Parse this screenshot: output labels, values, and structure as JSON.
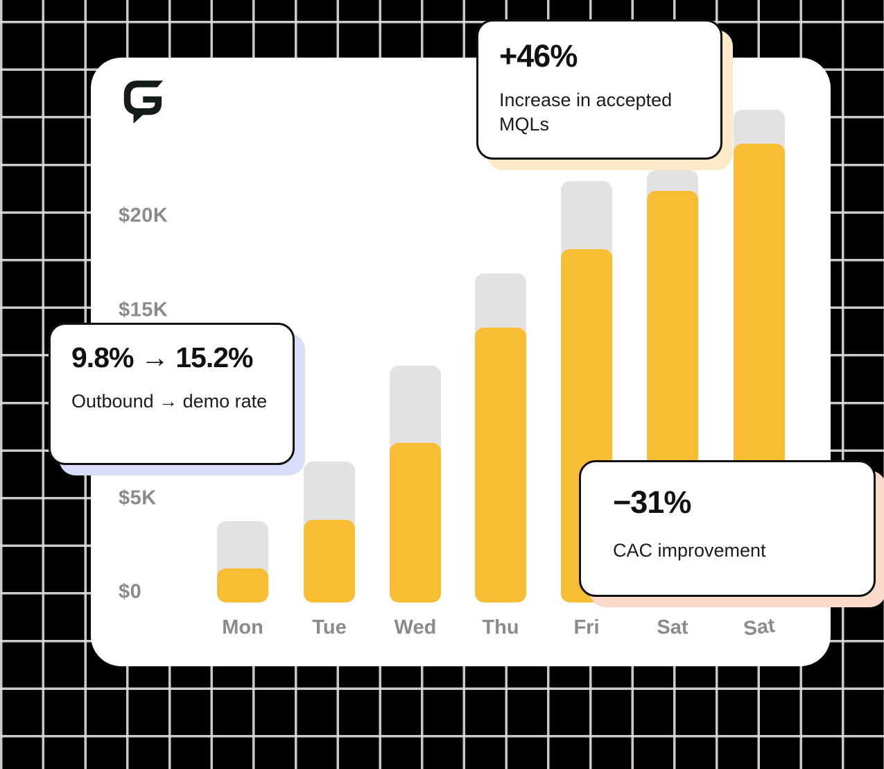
{
  "canvas": {
    "background_color": "#000000",
    "grid_line_color": "#dbdbdb"
  },
  "brand": {
    "logo_icon": "g-speech-bubble-logo",
    "logo_color": "#131c15"
  },
  "chart_data": {
    "type": "bar",
    "stacked": true,
    "title": "",
    "xlabel": "",
    "ylabel": "",
    "categories": [
      "Mon",
      "Tue",
      "Wed",
      "Thu",
      "Fri",
      "Sat",
      "Sat"
    ],
    "series": [
      {
        "name": "value",
        "color": "#F8BE33",
        "values": [
          1800,
          4400,
          8500,
          14600,
          18800,
          21900,
          24400
        ]
      },
      {
        "name": "total-track",
        "color": "#E2E2E2",
        "values": [
          4300,
          7500,
          12600,
          17500,
          22400,
          23000,
          26200
        ]
      }
    ],
    "y_ticks": [
      {
        "label": "$20K",
        "value": 20000
      },
      {
        "label": "$15K",
        "value": 15000
      },
      {
        "label": "$5K",
        "value": 5000
      },
      {
        "label": "$0",
        "value": 0
      }
    ],
    "ylim": [
      0,
      27000
    ],
    "grid": "off",
    "legend": "none",
    "axis_label_color": "#8b8b8b",
    "note": "gray track segments are drawn to the total value behind the yellow value segments"
  },
  "callouts": [
    {
      "id": "demo-rate",
      "title": "9.8% → 15.2%",
      "subtitle": "Outbound → demo rate",
      "shadow_color": "#D9DDF7"
    },
    {
      "id": "mqls",
      "title": "+46%",
      "subtitle": "Increase in accepted MQLs",
      "shadow_color": "#FBE9C8"
    },
    {
      "id": "cac",
      "title": "−31%",
      "subtitle": "CAC improvement",
      "shadow_color": "#FBD9CB"
    }
  ]
}
